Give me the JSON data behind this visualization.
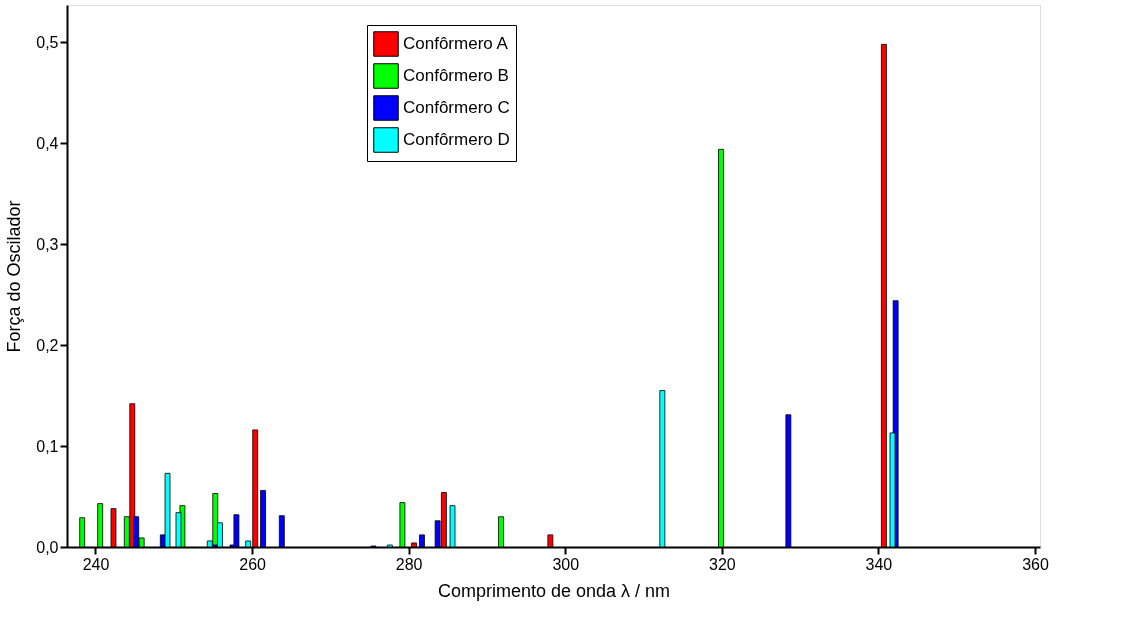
{
  "chart_data": {
    "type": "bar",
    "xlabel": "Comprimento de onda λ / nm",
    "ylabel": "Força do Oscilador",
    "xlim": [
      237,
      360
    ],
    "xticks": [
      240,
      260,
      280,
      300,
      320,
      340,
      360
    ],
    "ylim": [
      0,
      0.537
    ],
    "yticks": [
      {
        "value": 0,
        "label": "0,0"
      },
      {
        "value": 0.1,
        "label": "0,1"
      },
      {
        "value": 0.2,
        "label": "0,2"
      },
      {
        "value": 0.3,
        "label": "0,3"
      },
      {
        "value": 0.4,
        "label": "0,4"
      },
      {
        "value": 0.5,
        "label": "0,5"
      }
    ],
    "legend": "top",
    "grid": false,
    "series": [
      {
        "name": "Confôrmero A",
        "color": "#ff0000",
        "x": [
          242.3,
          244.7,
          260.4,
          280.7,
          284.5,
          298.1,
          340.7
        ],
        "values": [
          0.038,
          0.142,
          0.116,
          0.004,
          0.054,
          0.012,
          0.498
        ]
      },
      {
        "name": "Confôrmero B",
        "color": "#00ff00",
        "x": [
          238.3,
          240.6,
          244.0,
          245.9,
          251.1,
          255.3,
          279.2,
          291.8,
          319.9
        ],
        "values": [
          0.029,
          0.043,
          0.03,
          0.009,
          0.041,
          0.053,
          0.044,
          0.03,
          0.394
        ]
      },
      {
        "name": "Confôrmero C",
        "color": "#0000ff",
        "x": [
          245.2,
          248.6,
          255.2,
          257.5,
          258.0,
          261.4,
          263.8,
          275.5,
          281.7,
          283.7,
          328.5,
          342.2
        ],
        "values": [
          0.03,
          0.012,
          0.002,
          0.002,
          0.032,
          0.056,
          0.031,
          0.001,
          0.012,
          0.026,
          0.131,
          0.244
        ]
      },
      {
        "name": "Confôrmero D",
        "color": "#00ffff",
        "x": [
          249.2,
          250.6,
          254.6,
          255.9,
          259.5,
          277.6,
          285.6,
          312.4,
          341.8
        ],
        "values": [
          0.073,
          0.034,
          0.006,
          0.024,
          0.006,
          0.002,
          0.041,
          0.155,
          0.113
        ]
      }
    ]
  }
}
